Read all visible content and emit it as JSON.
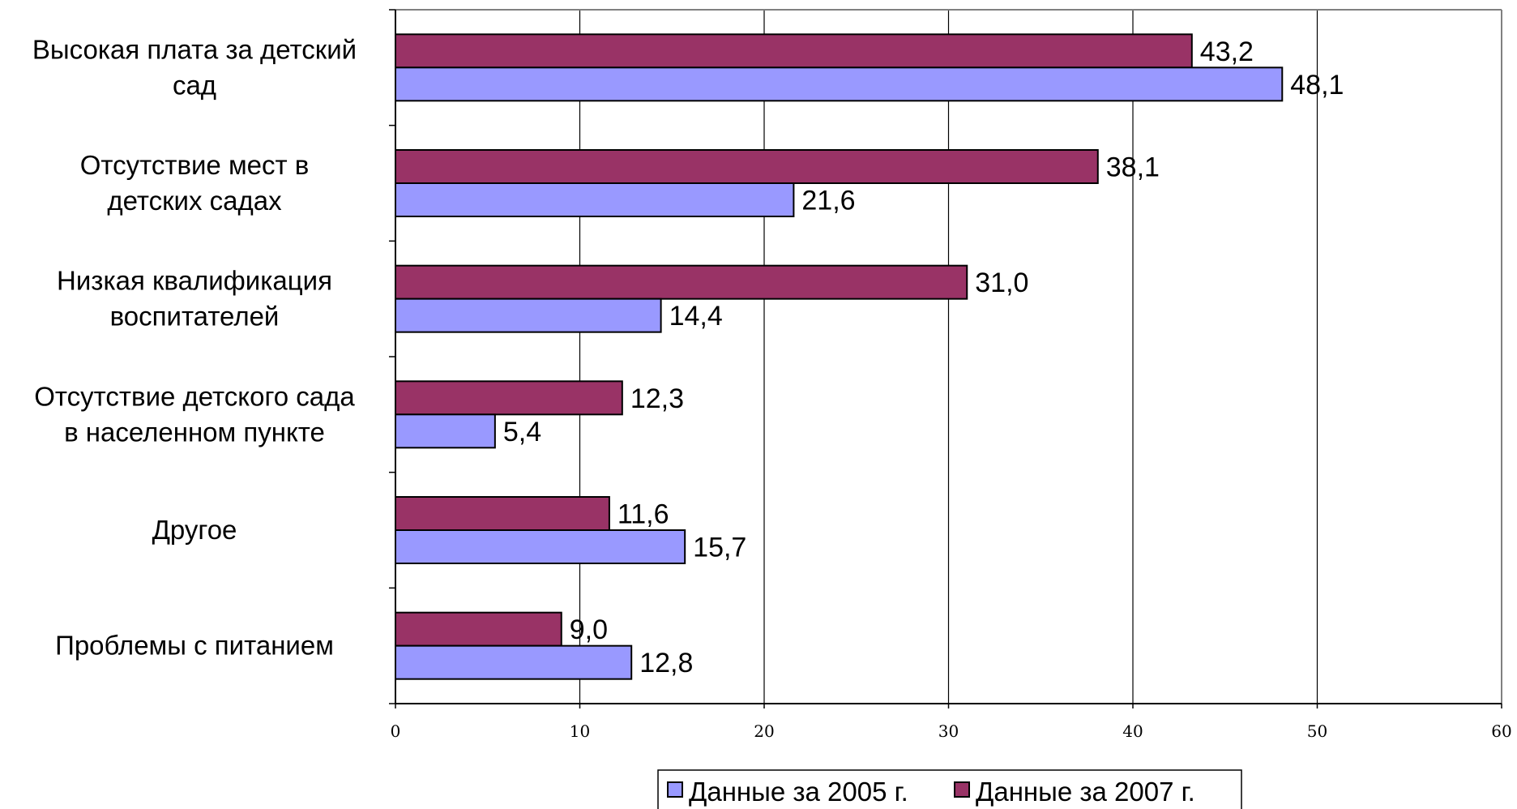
{
  "chart_data": {
    "type": "bar",
    "orientation": "horizontal",
    "categories": [
      [
        "Высокая плата за детский",
        "сад"
      ],
      [
        "Отсутствие мест в",
        "детских садах"
      ],
      [
        "Низкая квалификация",
        "воспитателей"
      ],
      [
        "Отсутствие детского сада",
        "в населенном пункте"
      ],
      [
        "Другое"
      ],
      [
        "Проблемы с питанием"
      ]
    ],
    "series": [
      {
        "name": "Данные за 2007 г.",
        "color": "#993366",
        "values": [
          43.2,
          38.1,
          31.0,
          12.3,
          11.6,
          9.0
        ],
        "labels": [
          "43,2",
          "38,1",
          "31,0",
          "12,3",
          "11,6",
          "9,0"
        ]
      },
      {
        "name": "Данные за 2005 г.",
        "color": "#9999ff",
        "values": [
          48.1,
          21.6,
          14.4,
          5.4,
          15.7,
          12.8
        ],
        "labels": [
          "48,1",
          "21,6",
          "14,4",
          "5,4",
          "15,7",
          "12,8"
        ]
      }
    ],
    "xlim": [
      0,
      60
    ],
    "xticks": [
      0,
      10,
      20,
      30,
      40,
      50,
      60
    ],
    "grid": true,
    "legend_position": "bottom",
    "legend_order": [
      "Данные за 2005 г.",
      "Данные за 2007 г."
    ]
  }
}
